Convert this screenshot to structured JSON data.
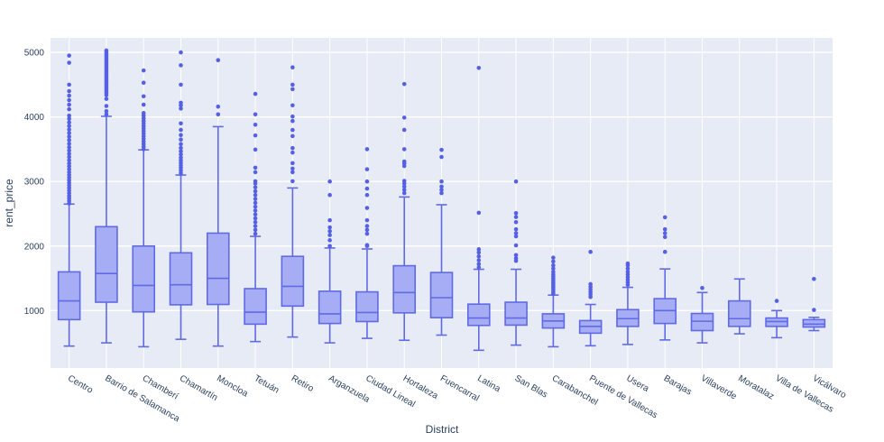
{
  "axes": {
    "x_title": "District",
    "y_title": "rent_price"
  },
  "style": {
    "plot_bg": "#e7ebf6",
    "grid_color": "#ffffff",
    "box_line": "#5f6ae4",
    "box_fill": "#a6adf4",
    "dot_color": "#5560e4",
    "text_color": "#2a3f5f"
  },
  "chart_data": {
    "type": "box",
    "title": "",
    "xlabel": "District",
    "ylabel": "rent_price",
    "ylim": [
      110,
      5225
    ],
    "yticks": [
      1000,
      2000,
      3000,
      4000,
      5000
    ],
    "grid": true,
    "legend": "none",
    "series": [
      {
        "name": "Centro",
        "whisker_low": 450,
        "q1": 860,
        "median": 1150,
        "q3": 1600,
        "whisker_high": 2650,
        "outliers": [
          2660,
          2700,
          2740,
          2780,
          2820,
          2860,
          2900,
          2940,
          2980,
          3020,
          3060,
          3100,
          3145,
          3190,
          3235,
          3280,
          3330,
          3380,
          3430,
          3480,
          3530,
          3585,
          3640,
          3695,
          3750,
          3805,
          3860,
          3915,
          3970,
          4020,
          4120,
          4190,
          4260,
          4330,
          4400,
          4500,
          4840,
          4950
        ]
      },
      {
        "name": "Barrio de Salamanca",
        "whisker_low": 500,
        "q1": 1130,
        "median": 1575,
        "q3": 2300,
        "whisker_high": 4010,
        "outliers": [
          4040,
          4090,
          4170,
          4280,
          4340,
          4370,
          4400,
          4430,
          4460,
          4490,
          4520,
          4550,
          4580,
          4610,
          4640,
          4670,
          4700,
          4730,
          4760,
          4790,
          4820,
          4850,
          4880,
          4910,
          4940,
          4970,
          5000,
          5030
        ]
      },
      {
        "name": "Chamberí",
        "whisker_low": 440,
        "q1": 980,
        "median": 1390,
        "q3": 2000,
        "whisker_high": 3490,
        "outliers": [
          3500,
          3540,
          3580,
          3620,
          3660,
          3700,
          3740,
          3780,
          3820,
          3860,
          3900,
          3940,
          3980,
          4020,
          4060,
          4190,
          4320,
          4530,
          4720
        ]
      },
      {
        "name": "Chamartín",
        "whisker_low": 555,
        "q1": 1090,
        "median": 1400,
        "q3": 1895,
        "whisker_high": 3100,
        "outliers": [
          3130,
          3170,
          3210,
          3250,
          3290,
          3330,
          3370,
          3420,
          3470,
          3520,
          3580,
          3650,
          3720,
          3800,
          3900,
          4130,
          4180,
          4220,
          4500,
          4800,
          5000
        ]
      },
      {
        "name": "Moncloa",
        "whisker_low": 450,
        "q1": 1095,
        "median": 1500,
        "q3": 2200,
        "whisker_high": 3850,
        "outliers": [
          4040,
          4160,
          4880
        ]
      },
      {
        "name": "Tetuán",
        "whisker_low": 520,
        "q1": 790,
        "median": 975,
        "q3": 1340,
        "whisker_high": 2150,
        "outliers": [
          2190,
          2250,
          2310,
          2370,
          2430,
          2490,
          2550,
          2610,
          2670,
          2730,
          2790,
          2850,
          2910,
          2970,
          3004,
          3144,
          3214,
          3494,
          3714,
          3880,
          4040,
          4357
        ]
      },
      {
        "name": "Retiro",
        "whisker_low": 590,
        "q1": 1070,
        "median": 1375,
        "q3": 1840,
        "whisker_high": 2900,
        "outliers": [
          3004,
          3144,
          3200,
          3284,
          3448,
          3518,
          3704,
          3798,
          3937,
          4007,
          4180,
          4430,
          4500,
          4768
        ]
      },
      {
        "name": "Arganzuela",
        "whisker_low": 500,
        "q1": 800,
        "median": 950,
        "q3": 1300,
        "whisker_high": 1970,
        "outliers": [
          2000,
          2090,
          2170,
          2230,
          2290,
          2400,
          2790,
          3000
        ]
      },
      {
        "name": "Ciudad Lineal",
        "whisker_low": 570,
        "q1": 830,
        "median": 970,
        "q3": 1290,
        "whisker_high": 1955,
        "outliers": [
          2000,
          2015,
          2190,
          2250,
          2310,
          2400,
          2590,
          2790,
          2890,
          3000,
          3190,
          3500
        ]
      },
      {
        "name": "Hortaleza",
        "whisker_low": 540,
        "q1": 965,
        "median": 1280,
        "q3": 1695,
        "whisker_high": 2760,
        "outliers": [
          2820,
          2870,
          2920,
          2970,
          3010,
          3240,
          3280,
          3310,
          3500,
          3800,
          3990,
          4510
        ]
      },
      {
        "name": "Fuencarral",
        "whisker_low": 620,
        "q1": 890,
        "median": 1200,
        "q3": 1590,
        "whisker_high": 2640,
        "outliers": [
          2820,
          2870,
          2920,
          3000,
          3380,
          3490
        ]
      },
      {
        "name": "Latina",
        "whisker_low": 385,
        "q1": 770,
        "median": 885,
        "q3": 1100,
        "whisker_high": 1640,
        "outliers": [
          1670,
          1720,
          1780,
          1840,
          1900,
          1950,
          2515,
          4760
        ]
      },
      {
        "name": "San Blas",
        "whisker_low": 465,
        "q1": 775,
        "median": 885,
        "q3": 1130,
        "whisker_high": 1640,
        "outliers": [
          1770,
          1810,
          1860,
          2010,
          2150,
          2200,
          2260,
          2370,
          2450,
          2510,
          3000
        ]
      },
      {
        "name": "Carabanchel",
        "whisker_low": 440,
        "q1": 730,
        "median": 840,
        "q3": 950,
        "whisker_high": 1240,
        "outliers": [
          1260,
          1290,
          1320,
          1350,
          1380,
          1410,
          1440,
          1470,
          1500,
          1530,
          1560,
          1600,
          1650,
          1700,
          1760,
          1820
        ]
      },
      {
        "name": "Puente de Vallecas",
        "whisker_low": 455,
        "q1": 650,
        "median": 755,
        "q3": 845,
        "whisker_high": 1095,
        "outliers": [
          1210,
          1250,
          1290,
          1330,
          1370,
          1410,
          1910
        ]
      },
      {
        "name": "Usera",
        "whisker_low": 475,
        "q1": 755,
        "median": 875,
        "q3": 1015,
        "whisker_high": 1360,
        "outliers": [
          1400,
          1440,
          1480,
          1520,
          1560,
          1600,
          1650,
          1700,
          1730
        ]
      },
      {
        "name": "Barajas",
        "whisker_low": 545,
        "q1": 800,
        "median": 1000,
        "q3": 1185,
        "whisker_high": 1645,
        "outliers": [
          1910,
          2140,
          2200,
          2260,
          2445
        ]
      },
      {
        "name": "Villaverde",
        "whisker_low": 500,
        "q1": 690,
        "median": 835,
        "q3": 955,
        "whisker_high": 1280,
        "outliers": [
          1350
        ]
      },
      {
        "name": "Moratalaz",
        "whisker_low": 640,
        "q1": 755,
        "median": 875,
        "q3": 1150,
        "whisker_high": 1490,
        "outliers": []
      },
      {
        "name": "Villa de Vallecas",
        "whisker_low": 580,
        "q1": 755,
        "median": 830,
        "q3": 885,
        "whisker_high": 1000,
        "outliers": [
          1150
        ]
      },
      {
        "name": "Vicálvaro",
        "whisker_low": 690,
        "q1": 745,
        "median": 790,
        "q3": 860,
        "whisker_high": 895,
        "outliers": [
          1010,
          1490
        ]
      }
    ]
  }
}
